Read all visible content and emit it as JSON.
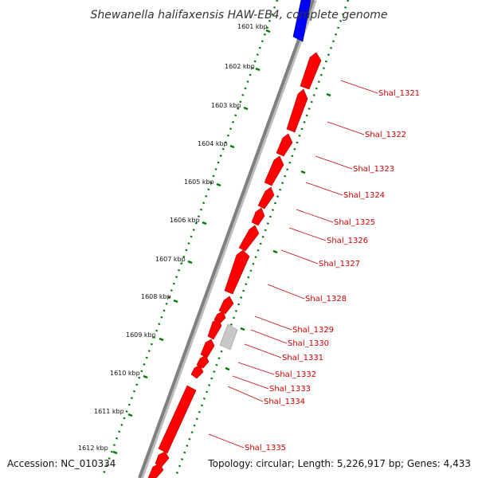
{
  "title": "Shewanella halifaxensis HAW-EB4, complete genome",
  "footer": {
    "accession": "Accession: NC_010334",
    "topology": "Topology: circular; Length: 5,226,917 bp; Genes: 4,433"
  },
  "colors": {
    "backbone": "#808080",
    "gene_forward": "#ff0000",
    "gene_other": "#0000ff",
    "gene_pseudo": "#c8c8c8",
    "ruler": "#007700",
    "label": "#cc0000"
  },
  "ruler_labels": [
    "1601 kbp",
    "1602 kbp",
    "1603 kbp",
    "1604 kbp",
    "1605 kbp",
    "1606 kbp",
    "1607 kbp",
    "1608 kbp",
    "1609 kbp",
    "1610 kbp",
    "1611 kbp",
    "1612 kbp"
  ],
  "genes": [
    "Shal_1321",
    "Shal_1322",
    "Shal_1323",
    "Shal_1324",
    "Shal_1325",
    "Shal_1326",
    "Shal_1327",
    "Shal_1328",
    "Shal_1329",
    "Shal_1330",
    "Shal_1331",
    "Shal_1332",
    "Shal_1333",
    "Shal_1334",
    "Shal_1335"
  ]
}
